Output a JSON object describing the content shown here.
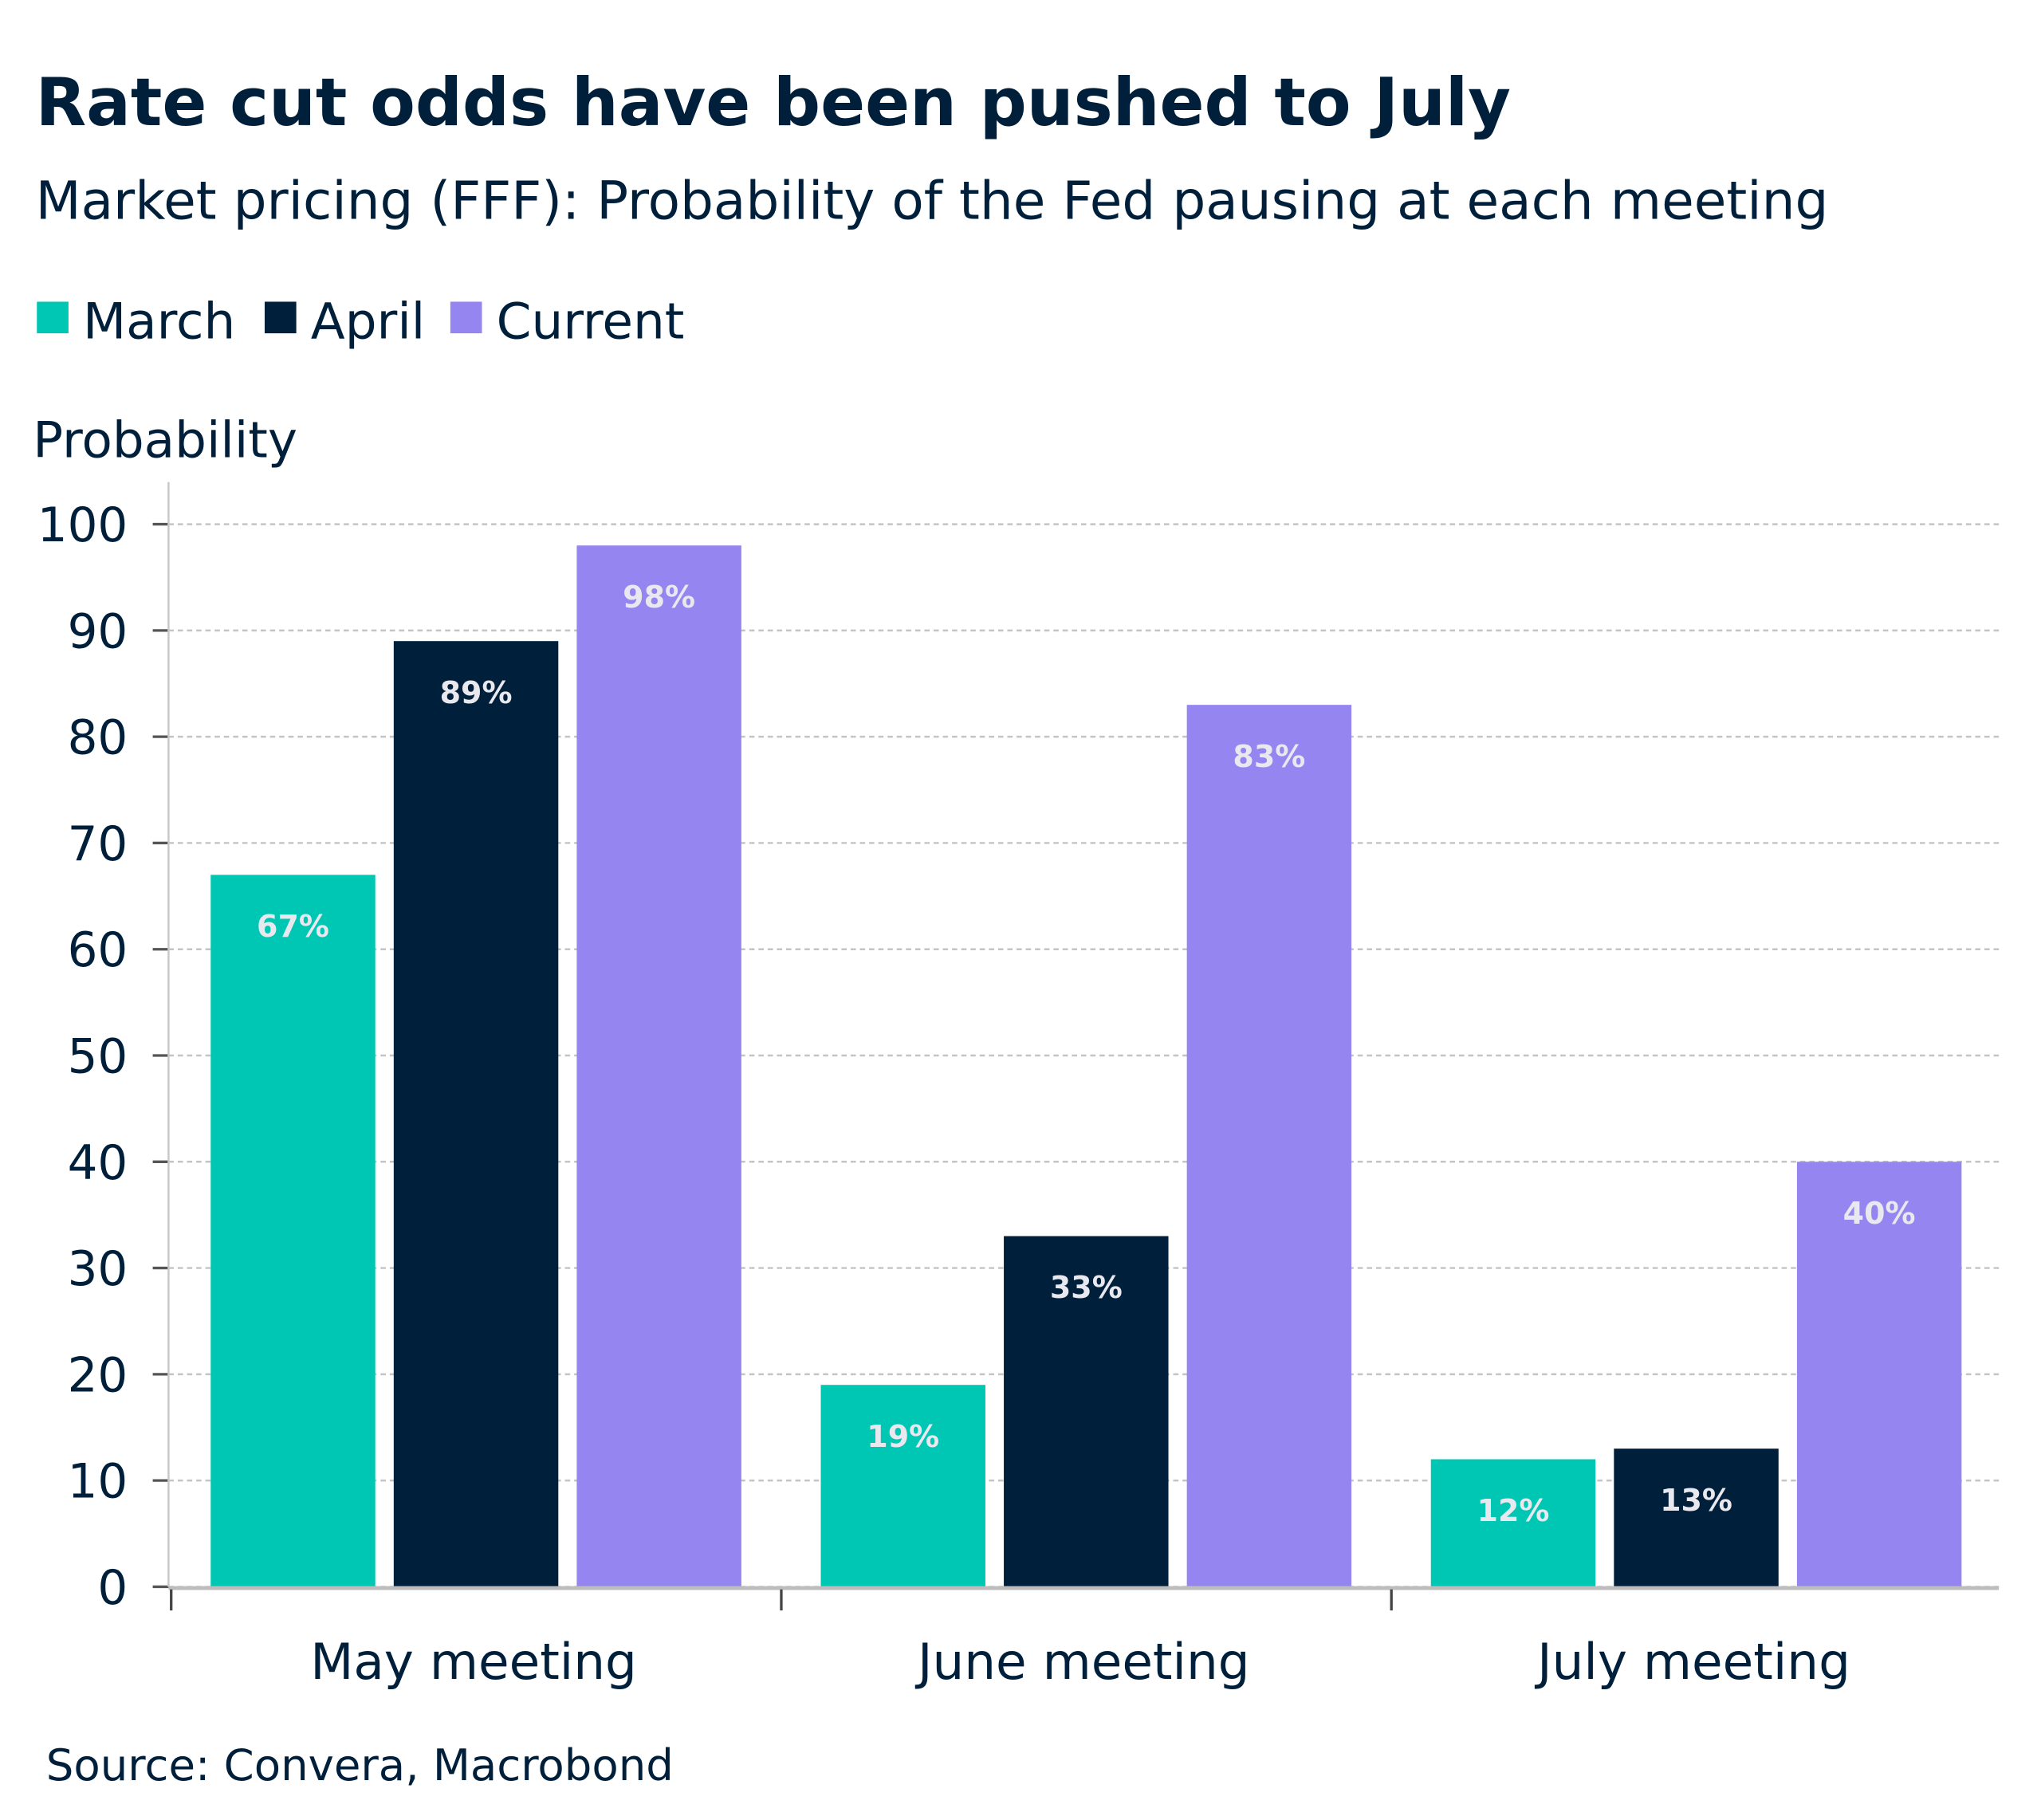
{
  "chart_data": {
    "type": "bar",
    "title": "Rate cut odds have been pushed to July",
    "subtitle": "Market pricing (FFF): Probability of the Fed pausing at each meeting",
    "ylabel": "Probability",
    "xlabel": "",
    "ylim": [
      0,
      100
    ],
    "yticks": [
      0,
      10,
      20,
      30,
      40,
      50,
      60,
      70,
      80,
      90,
      100
    ],
    "grid": true,
    "legend_position": "top-left",
    "categories": [
      "May meeting",
      "June meeting",
      "July meeting"
    ],
    "series": [
      {
        "name": "March",
        "color": "#00c7b4",
        "values": [
          67,
          19,
          12
        ],
        "labels": [
          "67%",
          "19%",
          "12%"
        ]
      },
      {
        "name": "April",
        "color": "#001f3a",
        "values": [
          89,
          33,
          13
        ],
        "labels": [
          "89%",
          "33%",
          "13%"
        ]
      },
      {
        "name": "Current",
        "color": "#9585f0",
        "values": [
          98,
          83,
          40
        ],
        "labels": [
          "98%",
          "83%",
          "40%"
        ]
      }
    ],
    "source": "Source: Convera, Macrobond"
  }
}
